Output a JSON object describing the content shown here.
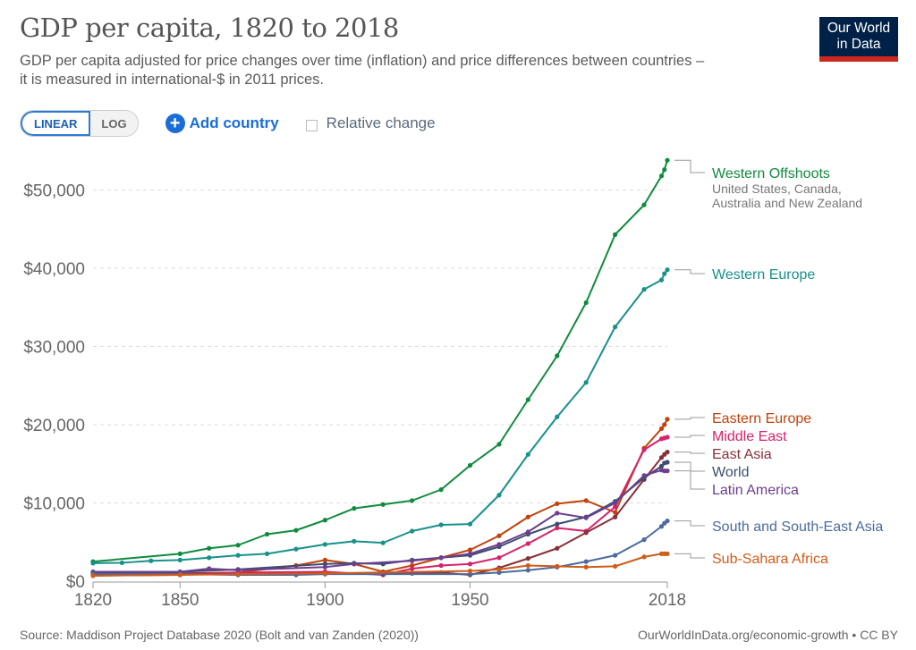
{
  "header": {
    "title": "GDP per capita, 1820 to 2018",
    "subtitle_line1": "GDP per capita adjusted for price changes over time (inflation) and price differences between countries –",
    "subtitle_line2": "it is measured in international-$ in 2011 prices.",
    "logo_line1": "Our World",
    "logo_line2": "in Data"
  },
  "controls": {
    "linear_label": "LINEAR",
    "log_label": "LOG",
    "add_country_label": "Add country",
    "relative_change_label": "Relative change",
    "relative_change_checked": false,
    "scale_selected": "LINEAR"
  },
  "footer": {
    "source": "Source: Maddison Project Database 2020 (Bolt and van Zanden (2020))",
    "credit": "OurWorldInData.org/economic-growth • CC BY"
  },
  "chart_data": {
    "type": "line",
    "title": "GDP per capita, 1820 to 2018",
    "xlabel": "",
    "ylabel": "",
    "xlim": [
      1820,
      2018
    ],
    "ylim": [
      0,
      55000
    ],
    "x_ticks": [
      1820,
      1850,
      1900,
      1950,
      2018
    ],
    "y_ticks": [
      {
        "value": 0,
        "label": "$0"
      },
      {
        "value": 10000,
        "label": "$10,000"
      },
      {
        "value": 20000,
        "label": "$20,000"
      },
      {
        "value": 30000,
        "label": "$30,000"
      },
      {
        "value": 40000,
        "label": "$40,000"
      },
      {
        "value": 50000,
        "label": "$50,000"
      }
    ],
    "grid": "horizontal-dashed",
    "legend": "right-inline-labels",
    "series": [
      {
        "name": "Western Offshoots",
        "sublabel_line1": "United States, Canada,",
        "sublabel_line2": "Australia and New Zealand",
        "color": "#0f8b3e",
        "points": [
          [
            1820,
            2500
          ],
          [
            1850,
            3500
          ],
          [
            1860,
            4200
          ],
          [
            1870,
            4600
          ],
          [
            1880,
            6000
          ],
          [
            1890,
            6500
          ],
          [
            1900,
            7800
          ],
          [
            1910,
            9300
          ],
          [
            1920,
            9800
          ],
          [
            1930,
            10300
          ],
          [
            1940,
            11700
          ],
          [
            1950,
            14800
          ],
          [
            1960,
            17500
          ],
          [
            1970,
            23200
          ],
          [
            1980,
            28800
          ],
          [
            1990,
            35600
          ],
          [
            2000,
            44300
          ],
          [
            2010,
            48100
          ],
          [
            2016,
            51800
          ],
          [
            2017,
            52600
          ],
          [
            2018,
            53800
          ]
        ]
      },
      {
        "name": "Western Europe",
        "color": "#17918a",
        "points": [
          [
            1820,
            2300
          ],
          [
            1830,
            2350
          ],
          [
            1840,
            2600
          ],
          [
            1850,
            2700
          ],
          [
            1860,
            3000
          ],
          [
            1870,
            3300
          ],
          [
            1880,
            3500
          ],
          [
            1890,
            4100
          ],
          [
            1900,
            4700
          ],
          [
            1910,
            5100
          ],
          [
            1920,
            4900
          ],
          [
            1930,
            6400
          ],
          [
            1940,
            7200
          ],
          [
            1950,
            7300
          ],
          [
            1960,
            11000
          ],
          [
            1970,
            16200
          ],
          [
            1980,
            21000
          ],
          [
            1990,
            25400
          ],
          [
            2000,
            32500
          ],
          [
            2010,
            37300
          ],
          [
            2016,
            38500
          ],
          [
            2017,
            39300
          ],
          [
            2018,
            39800
          ]
        ]
      },
      {
        "name": "Eastern Europe",
        "color": "#c1420a",
        "points": [
          [
            1820,
            700
          ],
          [
            1850,
            800
          ],
          [
            1870,
            1100
          ],
          [
            1890,
            2000
          ],
          [
            1900,
            2700
          ],
          [
            1910,
            2200
          ],
          [
            1920,
            1200
          ],
          [
            1930,
            2000
          ],
          [
            1940,
            3000
          ],
          [
            1950,
            4000
          ],
          [
            1960,
            5800
          ],
          [
            1970,
            8200
          ],
          [
            1980,
            9900
          ],
          [
            1990,
            10300
          ],
          [
            2000,
            8800
          ],
          [
            2010,
            17000
          ],
          [
            2016,
            19500
          ],
          [
            2017,
            20000
          ],
          [
            2018,
            20700
          ]
        ]
      },
      {
        "name": "Middle East",
        "color": "#d6226b",
        "points": [
          [
            1820,
            1000
          ],
          [
            1850,
            1000
          ],
          [
            1870,
            1100
          ],
          [
            1900,
            1200
          ],
          [
            1920,
            800
          ],
          [
            1930,
            1600
          ],
          [
            1940,
            2000
          ],
          [
            1950,
            2200
          ],
          [
            1960,
            3000
          ],
          [
            1970,
            4800
          ],
          [
            1980,
            6800
          ],
          [
            1990,
            6400
          ],
          [
            2000,
            9500
          ],
          [
            2010,
            16800
          ],
          [
            2016,
            18200
          ],
          [
            2017,
            18300
          ],
          [
            2018,
            18400
          ]
        ]
      },
      {
        "name": "East Asia",
        "color": "#883039",
        "points": [
          [
            1820,
            1000
          ],
          [
            1850,
            1000
          ],
          [
            1870,
            900
          ],
          [
            1900,
            1000
          ],
          [
            1920,
            900
          ],
          [
            1930,
            1000
          ],
          [
            1940,
            1100
          ],
          [
            1950,
            800
          ],
          [
            1960,
            1700
          ],
          [
            1970,
            2900
          ],
          [
            1980,
            4200
          ],
          [
            1990,
            6200
          ],
          [
            2000,
            8200
          ],
          [
            2010,
            13000
          ],
          [
            2016,
            15800
          ],
          [
            2017,
            16200
          ],
          [
            2018,
            16500
          ]
        ]
      },
      {
        "name": "World",
        "color": "#3c4e6c",
        "points": [
          [
            1820,
            1100
          ],
          [
            1850,
            1200
          ],
          [
            1870,
            1500
          ],
          [
            1900,
            2200
          ],
          [
            1910,
            2300
          ],
          [
            1920,
            2200
          ],
          [
            1930,
            2700
          ],
          [
            1940,
            3000
          ],
          [
            1950,
            3300
          ],
          [
            1960,
            4400
          ],
          [
            1970,
            6000
          ],
          [
            1980,
            7300
          ],
          [
            1990,
            8200
          ],
          [
            2000,
            10200
          ],
          [
            2010,
            13200
          ],
          [
            2016,
            14700
          ],
          [
            2017,
            15100
          ],
          [
            2018,
            15200
          ]
        ]
      },
      {
        "name": "Latin America",
        "color": "#6d3e91",
        "points": [
          [
            1820,
            1200
          ],
          [
            1850,
            1200
          ],
          [
            1860,
            1600
          ],
          [
            1870,
            1400
          ],
          [
            1900,
            1800
          ],
          [
            1910,
            2200
          ],
          [
            1930,
            2600
          ],
          [
            1940,
            3000
          ],
          [
            1950,
            3500
          ],
          [
            1960,
            4700
          ],
          [
            1970,
            6300
          ],
          [
            1980,
            8700
          ],
          [
            1990,
            8100
          ],
          [
            2000,
            10000
          ],
          [
            2010,
            13500
          ],
          [
            2016,
            14200
          ],
          [
            2017,
            14100
          ],
          [
            2018,
            14100
          ]
        ]
      },
      {
        "name": "South and South-East Asia",
        "color": "#4c6a9c",
        "points": [
          [
            1820,
            900
          ],
          [
            1850,
            900
          ],
          [
            1870,
            800
          ],
          [
            1890,
            800
          ],
          [
            1900,
            900
          ],
          [
            1950,
            900
          ],
          [
            1960,
            1100
          ],
          [
            1970,
            1400
          ],
          [
            1980,
            1800
          ],
          [
            1990,
            2500
          ],
          [
            2000,
            3300
          ],
          [
            2010,
            5300
          ],
          [
            2016,
            7000
          ],
          [
            2017,
            7400
          ],
          [
            2018,
            7700
          ]
        ]
      },
      {
        "name": "Sub-Sahara Africa",
        "color": "#ce5c1a",
        "points": [
          [
            1820,
            700
          ],
          [
            1850,
            800
          ],
          [
            1870,
            900
          ],
          [
            1900,
            1000
          ],
          [
            1950,
            1300
          ],
          [
            1960,
            1500
          ],
          [
            1970,
            2000
          ],
          [
            1980,
            1900
          ],
          [
            1990,
            1800
          ],
          [
            2000,
            1900
          ],
          [
            2010,
            3100
          ],
          [
            2016,
            3500
          ],
          [
            2017,
            3500
          ],
          [
            2018,
            3500
          ]
        ]
      }
    ]
  }
}
